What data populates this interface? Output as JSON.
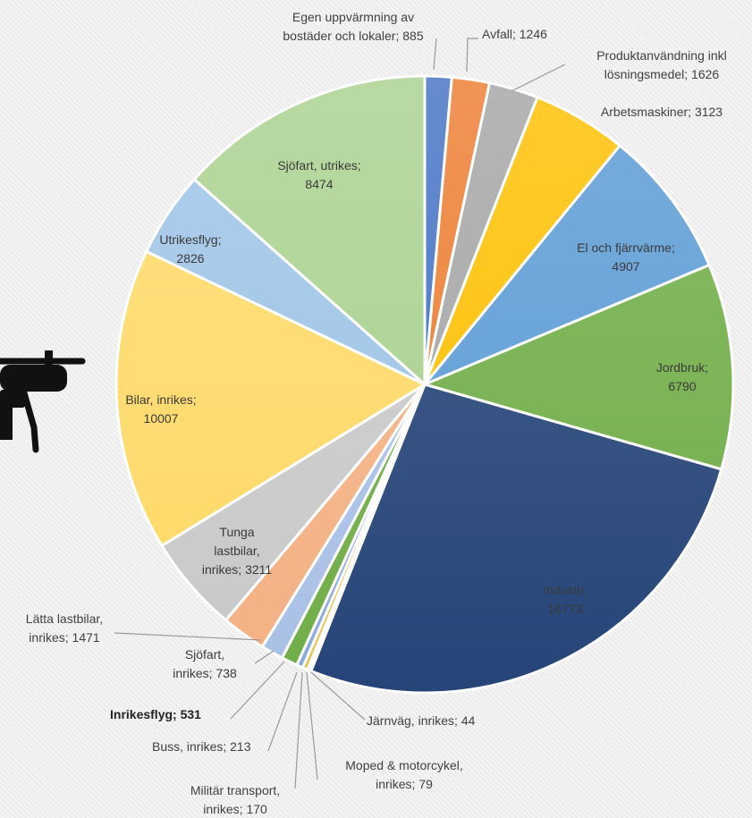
{
  "chart_data": {
    "type": "pie",
    "title": "",
    "slices": [
      {
        "label": "Egen uppvärmning av bostäder och lokaler",
        "value": 885,
        "color": "#4472c4",
        "label_text": [
          "Egen uppvärmning av",
          "bostäder och lokaler; 885"
        ]
      },
      {
        "label": "Avfall",
        "value": 1246,
        "color": "#ed7d31",
        "label_text": [
          "Avfall; 1246"
        ]
      },
      {
        "label": "Produktanvändning inkl lösningsmedel",
        "value": 1626,
        "color": "#a5a5a5",
        "label_text": [
          "Produktanvändning inkl",
          "lösningsmedel; 1626"
        ]
      },
      {
        "label": "Arbetsmaskiner",
        "value": 3123,
        "color": "#ffc000",
        "label_text": [
          "Arbetsmaskiner; 3123"
        ]
      },
      {
        "label": "El och fjärrvärme",
        "value": 4907,
        "color": "#5b9bd5",
        "label_text": [
          "El och fjärrvärme;",
          "4907"
        ]
      },
      {
        "label": "Jordbruk",
        "value": 6790,
        "color": "#70ad47",
        "label_text": [
          "Jordbruk;",
          "6790"
        ]
      },
      {
        "label": "Industri",
        "value": 16773,
        "color": "#264478",
        "label_text": [
          "Industri;",
          "16773"
        ]
      },
      {
        "label": "Järnväg, inrikes",
        "value": 44,
        "color": "#9e480e",
        "label_text": [
          "Järnväg, inrikes; 44"
        ]
      },
      {
        "label": "Moped & motorcykel, inrikes",
        "value": 79,
        "color": "#b8b8b8",
        "label_text": [
          "Moped & motorcykel,",
          "inrikes; 79"
        ]
      },
      {
        "label": "Militär transport, inrikes",
        "value": 170,
        "color": "#e6c34d",
        "label_text": [
          "Militär transport,",
          "inrikes; 170"
        ]
      },
      {
        "label": "Buss, inrikes",
        "value": 213,
        "color": "#8aa9dc",
        "label_text": [
          "Buss, inrikes; 213"
        ]
      },
      {
        "label": "Inrikesflyg",
        "value": 531,
        "color": "#70ad47",
        "label_text": [
          "Inrikesflyg; 531"
        ]
      },
      {
        "label": "Sjöfart, inrikes",
        "value": 738,
        "color": "#a9c0e6",
        "label_text": [
          "Sjöfart,",
          "inrikes; 738"
        ]
      },
      {
        "label": "Lätta lastbilar, inrikes",
        "value": 1471,
        "color": "#f4b183",
        "label_text": [
          "Lätta lastbilar,",
          "inrikes; 1471"
        ]
      },
      {
        "label": "Tunga lastbilar, inrikes",
        "value": 3211,
        "color": "#c9c9c9",
        "label_text": [
          "Tunga",
          "lastbilar,",
          "inrikes; 3211"
        ]
      },
      {
        "label": "Bilar, inrikes",
        "value": 10007,
        "color": "#ffd966",
        "label_text": [
          "Bilar, inrikes;",
          "10007"
        ]
      },
      {
        "label": "Utrikesflyg",
        "value": 2826,
        "color": "#9dc3e6",
        "label_text": [
          "Utrikesflyg;",
          "2826"
        ]
      },
      {
        "label": "Sjöfart, utrikes",
        "value": 8474,
        "color": "#a9d18e",
        "label_text": [
          "Sjöfart, utrikes;",
          "8474"
        ]
      }
    ],
    "start": "12 o'clock",
    "direction": "clockwise",
    "legend": "none"
  },
  "drone": {
    "icon": "drone-icon",
    "color": "#111111"
  }
}
